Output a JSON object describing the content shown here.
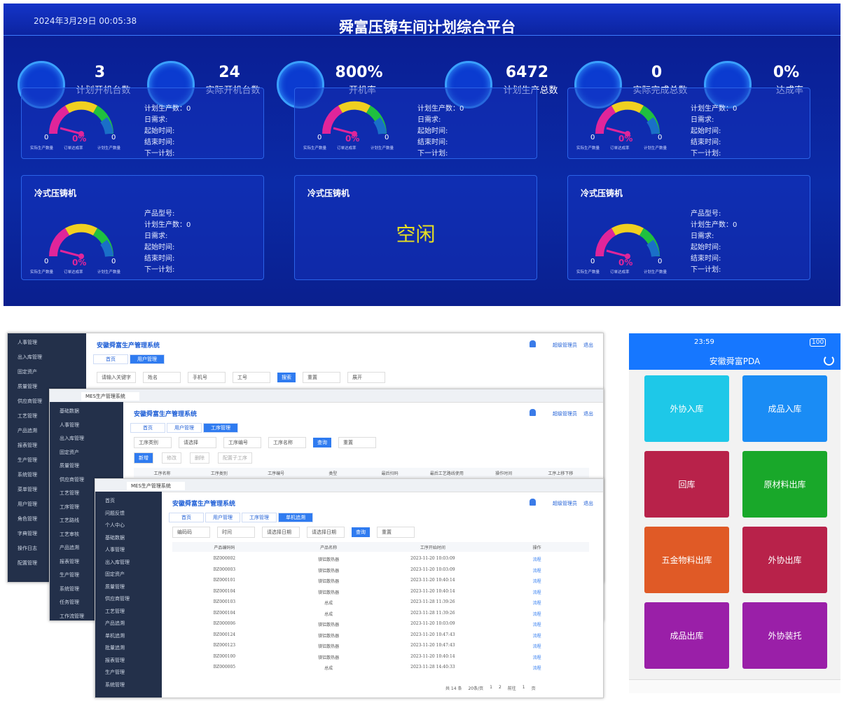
{
  "dashboard": {
    "datetime": "2024年3月29日 00:05:38",
    "title": "舜富压铸车间计划综合平台",
    "kpis": [
      {
        "value": "3",
        "label": "计划开机台数"
      },
      {
        "value": "24",
        "label": "实际开机台数"
      },
      {
        "value": "800%",
        "label": "开机率"
      },
      {
        "value": "6472",
        "label": "计划生产总数"
      },
      {
        "value": "0",
        "label": "实际完成总数"
      },
      {
        "value": "0%",
        "label": "达成率"
      }
    ],
    "cards": [
      {
        "fields": [
          "计划生产数：0",
          "日需求:",
          "起始时间:",
          "结束时间:",
          "下一计划:"
        ],
        "gauge": [
          "0",
          "0%",
          "0"
        ],
        "gauge_labels": [
          "实际生产数量",
          "订单达成率",
          "计划生产数量"
        ]
      },
      {
        "fields": [
          "计划生产数：0",
          "日需求:",
          "起始时间:",
          "结束时间:",
          "下一计划:"
        ],
        "gauge": [
          "0",
          "0%",
          "0"
        ],
        "gauge_labels": [
          "实际生产数量",
          "订单达成率",
          "计划生产数量"
        ]
      },
      {
        "fields": [
          "计划生产数：0",
          "日需求:",
          "起始时间:",
          "结束时间:",
          "下一计划:"
        ],
        "gauge": [
          "0",
          "0%",
          "0"
        ],
        "gauge_labels": [
          "实际生产数量",
          "订单达成率",
          "计划生产数量"
        ]
      },
      {
        "title": "冷式压铸机",
        "fields": [
          "产品型号:",
          "计划生产数：0",
          "日需求:",
          "起始时间:",
          "结束时间:",
          "下一计划:"
        ],
        "gauge": [
          "0",
          "0%",
          "0"
        ],
        "gauge_labels": [
          "实际生产数量",
          "订单达成率",
          "计划生产数量"
        ]
      },
      {
        "title": "冷式压铸机",
        "status": "空闲"
      },
      {
        "title": "冷式压铸机",
        "fields": [
          "产品型号:",
          "计划生产数：0",
          "日需求:",
          "起始时间:",
          "结束时间:",
          "下一计划:"
        ],
        "gauge": [
          "0",
          "0%",
          "0"
        ],
        "gauge_labels": [
          "实际生产数量",
          "订单达成率",
          "计划生产数量"
        ]
      }
    ]
  },
  "mes": {
    "windows": [
      {
        "system_title": "安徽舜富生产管理系统",
        "user": "超级管理员",
        "logout": "退出",
        "sidebar": [
          "人事管理",
          "出入库管理",
          "固定资产",
          "质量管理",
          "供应商管理",
          "工艺管理",
          "产品追溯",
          "报表管理",
          "生产管理",
          "系统管理",
          "菜单管理",
          "用户管理",
          "角色管理",
          "字典管理",
          "操作日志",
          "配置管理"
        ],
        "tabs": [
          "首页",
          "用户管理"
        ],
        "filters": [
          "请输入关键字",
          "姓名",
          "手机号",
          "工号",
          "搜索",
          "重置",
          "展开"
        ]
      },
      {
        "browser_tab": "MES生产管理系统",
        "system_title": "安徽舜富生产管理系统",
        "user": "超级管理员",
        "logout": "退出",
        "sidebar": [
          "基础数据",
          "人事管理",
          "出入库管理",
          "固定资产",
          "质量管理",
          "供应商管理",
          "工艺管理",
          "工序管理",
          "工艺路线",
          "工艺审核",
          "产品追溯",
          "报表管理",
          "生产管理",
          "系统管理",
          "任务管理",
          "工作流管理"
        ],
        "tabs": [
          "首页",
          "用户管理",
          "工序管理"
        ],
        "filters": [
          "工序类别",
          "请选择",
          "工序编号",
          "工序名称",
          "查询",
          "重置"
        ],
        "buttons": [
          "新增",
          "修改",
          "删除",
          "配置子工序"
        ],
        "columns": [
          "工序名称",
          "工序类别",
          "工序编号",
          "类型",
          "最后扫码",
          "最后工艺路线使用",
          "操作时间",
          "工序上移下移"
        ]
      },
      {
        "browser_tab": "MES生产管理系统",
        "system_title": "安徽舜富生产管理系统",
        "user": "超级管理员",
        "logout": "退出",
        "sidebar": [
          "首页",
          "问题反馈",
          "个人中心",
          "基础数据",
          "人事管理",
          "出入库管理",
          "固定资产",
          "质量管理",
          "供应商管理",
          "工艺管理",
          "产品追溯",
          "单机追溯",
          "批量追溯",
          "报表管理",
          "生产管理",
          "系统管理"
        ],
        "tabs": [
          "首页",
          "用户管理",
          "工序管理",
          "单机追溯"
        ],
        "filters": [
          "编码码",
          "时间",
          "请选择日期",
          "请选择日期",
          "查询",
          "重置"
        ],
        "columns": [
          "产品编码码",
          "产品名称",
          "工序开始时间",
          "操作"
        ],
        "rows": [
          [
            "BZ000002",
            "镁铝散热器",
            "2023-11-20 10:03:09",
            "流程"
          ],
          [
            "BZ000003",
            "镁铝散热器",
            "2023-11-20 10:03:09",
            "流程"
          ],
          [
            "BZ000101",
            "镁铝散热器",
            "2023-11-20 10:40:14",
            "流程"
          ],
          [
            "BZ000104",
            "镁铝散热器",
            "2023-11-20 10:40:14",
            "流程"
          ],
          [
            "BZ000103",
            "总成",
            "2023-11-28 11:39:26",
            "流程"
          ],
          [
            "BZ000104",
            "总成",
            "2023-11-28 11:39:26",
            "流程"
          ],
          [
            "BZ000006",
            "镁铝散热器",
            "2023-11-20 10:03:09",
            "流程"
          ],
          [
            "BZ000124",
            "镁铝散热器",
            "2023-11-20 10:47:43",
            "流程"
          ],
          [
            "BZ000123",
            "镁铝散热器",
            "2023-11-20 10:47:43",
            "流程"
          ],
          [
            "BZ000100",
            "镁铝散热器",
            "2023-11-20 10:40:14",
            "流程"
          ],
          [
            "BZ000005",
            "总成",
            "2023-11-28 14:40:33",
            "流程"
          ]
        ],
        "pagination": [
          "共 14 条",
          "20条/页",
          "1",
          "2",
          "前往",
          "1",
          "页"
        ]
      }
    ]
  },
  "pda": {
    "time": "23:59",
    "status": "100",
    "title": "安徽舜富PDA",
    "buttons": [
      {
        "label": "外协入库",
        "color": "#1ec8e8"
      },
      {
        "label": "成品入库",
        "color": "#1a8cf5"
      },
      {
        "label": "回库",
        "color": "#b8224a"
      },
      {
        "label": "原材料出库",
        "color": "#19a82a"
      },
      {
        "label": "五金物料出库",
        "color": "#e05a26"
      },
      {
        "label": "外协出库",
        "color": "#b8224a"
      },
      {
        "label": "成品出库",
        "color": "#9a1fa8"
      },
      {
        "label": "外协装托",
        "color": "#9a1fa8"
      }
    ]
  }
}
